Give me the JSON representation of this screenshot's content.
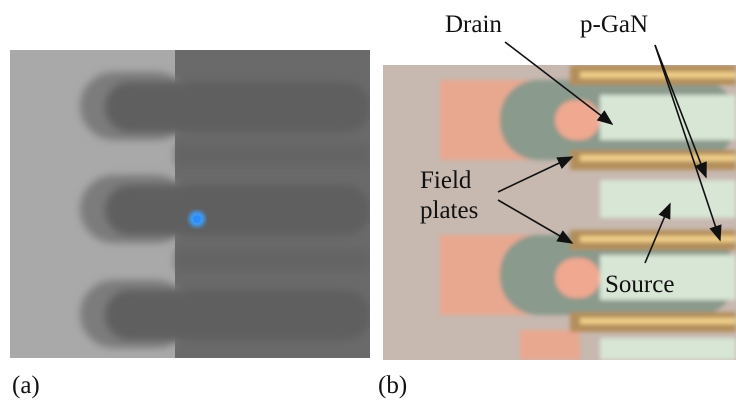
{
  "panels": [
    {
      "label": "(a)"
    },
    {
      "label": "(b)",
      "annotations": [
        {
          "lines": [
            "Drain"
          ]
        },
        {
          "lines": [
            "p-GaN"
          ]
        },
        {
          "lines": [
            "Field",
            "plates"
          ]
        },
        {
          "lines": [
            "Source"
          ]
        }
      ]
    }
  ]
}
